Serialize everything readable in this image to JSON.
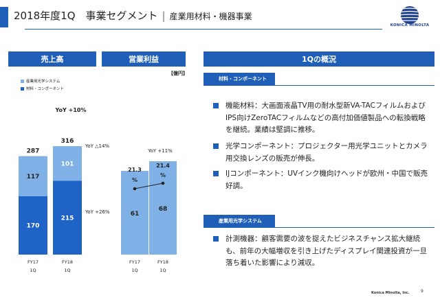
{
  "header": {
    "title_main": "2018年度1Q　事業セグメント",
    "separator": "|",
    "title_sub": "産業用材料・機器事業",
    "logo_text": "KONICA MINOLTA"
  },
  "left": {
    "sales_label": "売上高",
    "op_label": "営業利益",
    "unit": "【億円】",
    "legend": [
      {
        "label": "産業用光学システム",
        "color": "#7fb1e6"
      },
      {
        "label": "材料・コンポーネント",
        "color": "#1f63c6"
      }
    ]
  },
  "chart_data": [
    {
      "type": "bar",
      "title": "売上高",
      "categories": [
        "FY17 1Q",
        "FY18 1Q"
      ],
      "series": [
        {
          "name": "材料・コンポーネント",
          "values": [
            170,
            215
          ]
        },
        {
          "name": "産業用光学システム",
          "values": [
            117,
            101
          ]
        }
      ],
      "totals": [
        287,
        316
      ],
      "annotations": [
        "YoY +10%",
        "YoY △14%",
        "YoY +26%"
      ]
    },
    {
      "type": "bar",
      "title": "営業利益",
      "categories": [
        "FY17 1Q",
        "FY18 1Q"
      ],
      "values": [
        61,
        68
      ],
      "margin_line": [
        21.3,
        21.4
      ],
      "margin_unit": "%",
      "annotations": [
        "YoY +11%"
      ]
    }
  ],
  "cats": {
    "c1a": "FY17",
    "c1b": "1Q",
    "c2a": "FY18",
    "c2b": "1Q"
  },
  "right": {
    "header": "1Qの概況",
    "sections": [
      {
        "tab": "材料・コンポーネント",
        "bullets": [
          "機能材料：大画面液晶TV用の耐水型新VA-TACフィルムおよびIPS向けZeroTACフィルムなどの高付加価値製品への転換戦略を継続。業績は堅調に推移。",
          "光学コンポーネント：プロジェクター用光学ユニットとカメラ用交換レンズの販売が伸長。",
          "IJコンポーネント：UVインク機向けヘッドが欧州・中国で販売好調。"
        ]
      },
      {
        "tab": "産業用光学システム",
        "bullets": [
          "計測機器：顧客需要の波を捉えたビジネスチャンス拡大継続も、前年の大幅増収を引き上げたディスプレイ関連投資が一旦落ち着いた影響により減収。"
        ]
      }
    ]
  },
  "footer": {
    "company": "Konica Minolta, Inc.",
    "page": "9"
  },
  "colors": {
    "brand": "#1f5fb8",
    "light_bar": "#7fb1e6",
    "dark_bar": "#1f63c6"
  }
}
